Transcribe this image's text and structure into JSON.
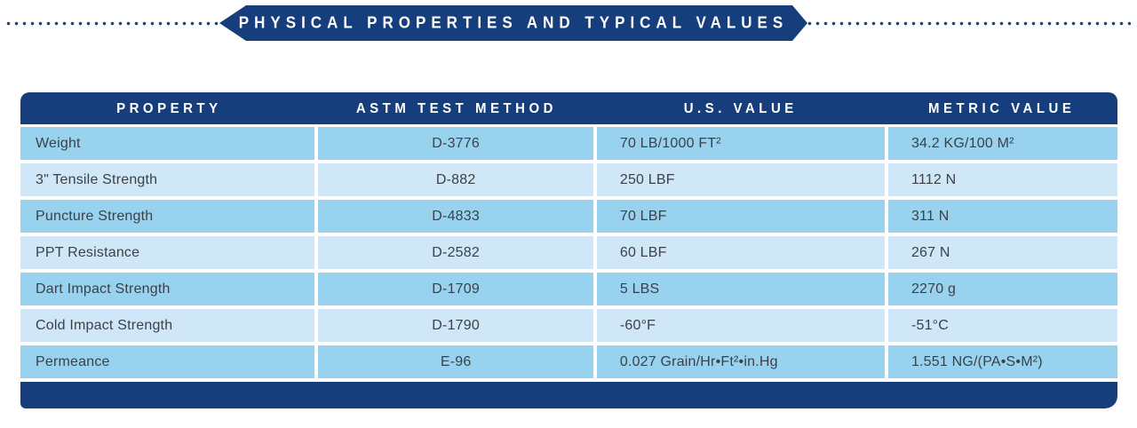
{
  "header": {
    "title": "PHYSICAL PROPERTIES AND TYPICAL VALUES"
  },
  "colors": {
    "navy": "#163e7c",
    "row_odd_blue": "#99d2ee",
    "row_even_blue": "#cfe7f7",
    "cell_text": "#3b4148",
    "banner_text": "#ffffff"
  },
  "table": {
    "columns": [
      "PROPERTY",
      "ASTM TEST METHOD",
      "U.S. VALUE",
      "METRIC VALUE"
    ],
    "rows": [
      {
        "property": "Weight",
        "astm": "D-3776",
        "us": "70 LB/1000 FT²",
        "metric": "34.2 KG/100 M²"
      },
      {
        "property": "3\" Tensile Strength",
        "astm": "D-882",
        "us": "250 LBF",
        "metric": "1112 N"
      },
      {
        "property": "Puncture Strength",
        "astm": "D-4833",
        "us": "70 LBF",
        "metric": "311 N"
      },
      {
        "property": "PPT Resistance",
        "astm": "D-2582",
        "us": "60 LBF",
        "metric": "267 N"
      },
      {
        "property": "Dart Impact Strength",
        "astm": "D-1709",
        "us": "5 LBS",
        "metric": "2270 g"
      },
      {
        "property": "Cold Impact Strength",
        "astm": "D-1790",
        "us": "-60°F",
        "metric": "-51°C"
      },
      {
        "property": "Permeance",
        "astm": "E-96",
        "us": "0.027 Grain/Hr•Ft²•in.Hg",
        "metric": "1.551 NG/(PA•S•M²)"
      }
    ]
  }
}
